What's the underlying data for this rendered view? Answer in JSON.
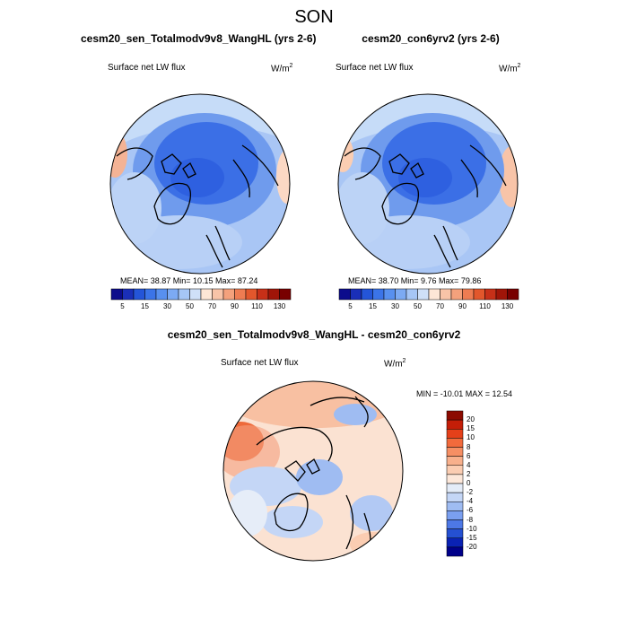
{
  "figure": {
    "title": "SON"
  },
  "panels": [
    {
      "title": "cesm20_sen_Totalmodv9v8_WangHL (yrs 2-6)",
      "variable": "Surface net LW flux",
      "units_base": "W/m",
      "units_exp": "2",
      "stats": "MEAN=  38.87  Min=  10.15  Max=  87.24",
      "colorbar": {
        "ticks": [
          "5",
          "15",
          "30",
          "50",
          "70",
          "90",
          "110",
          "130"
        ],
        "colors": [
          "#0c0c8c",
          "#1a2fb8",
          "#2455d8",
          "#3b74e8",
          "#5890ef",
          "#7caaf3",
          "#a6c6f6",
          "#cfe0f8",
          "#fde6d6",
          "#f8c4a8",
          "#f4a17c",
          "#ee7c52",
          "#e2572c",
          "#c73018",
          "#a01508",
          "#780000"
        ]
      }
    },
    {
      "title": "cesm20_con6yrv2 (yrs 2-6)",
      "variable": "Surface net LW flux",
      "units_base": "W/m",
      "units_exp": "2",
      "stats": "MEAN=  38.70  Min=   9.76  Max=  79.86",
      "colorbar": {
        "ticks": [
          "5",
          "15",
          "30",
          "50",
          "70",
          "90",
          "110",
          "130"
        ],
        "colors": [
          "#0c0c8c",
          "#1a2fb8",
          "#2455d8",
          "#3b74e8",
          "#5890ef",
          "#7caaf3",
          "#a6c6f6",
          "#cfe0f8",
          "#fde6d6",
          "#f8c4a8",
          "#f4a17c",
          "#ee7c52",
          "#e2572c",
          "#c73018",
          "#a01508",
          "#780000"
        ]
      }
    },
    {
      "title": "cesm20_sen_Totalmodv9v8_WangHL - cesm20_con6yrv2",
      "variable": "Surface net LW flux",
      "units_base": "W/m",
      "units_exp": "2",
      "stats": "MIN = -10.01  MAX =  12.54",
      "colorbar": {
        "ticks": [
          "20",
          "15",
          "10",
          "8",
          "6",
          "4",
          "2",
          "0",
          "-2",
          "-4",
          "-6",
          "-8",
          "-10",
          "-15",
          "-20"
        ],
        "colors": [
          "#8c0a00",
          "#c41e08",
          "#e5401a",
          "#f26a3c",
          "#f68f64",
          "#f8b08c",
          "#fbcdb2",
          "#fde8da",
          "#e4ecf8",
          "#c4d6f6",
          "#9fbcf2",
          "#7a9ff0",
          "#4d78e6",
          "#2550d2",
          "#0a22b4",
          "#00008a"
        ]
      }
    }
  ]
}
